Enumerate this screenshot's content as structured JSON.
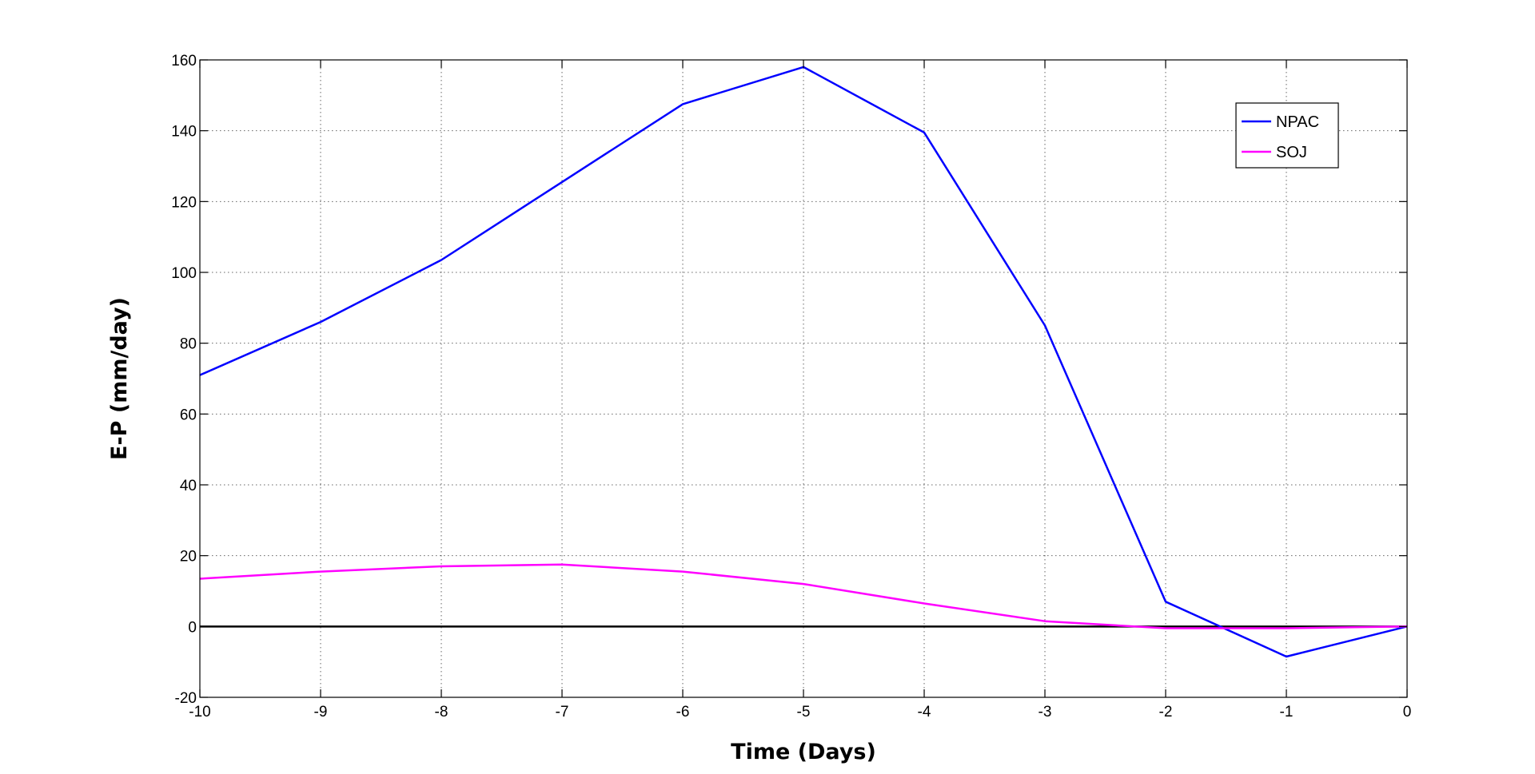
{
  "chart_data": {
    "type": "line",
    "title": "",
    "xlabel": "Time (Days)",
    "ylabel": "E-P (mm/day)",
    "xlim": [
      -10,
      0
    ],
    "ylim": [
      -20,
      160
    ],
    "x_ticks": [
      -10,
      -9,
      -8,
      -7,
      -6,
      -5,
      -4,
      -3,
      -2,
      -1,
      0
    ],
    "y_ticks": [
      -20,
      0,
      20,
      40,
      60,
      80,
      100,
      120,
      140,
      160
    ],
    "grid": true,
    "zero_line": true,
    "legend_position": "top-right",
    "series": [
      {
        "name": "NPAC",
        "color": "#0000ff",
        "x": [
          -10,
          -9,
          -8,
          -7,
          -6,
          -5,
          -4,
          -3,
          -2,
          -1,
          0
        ],
        "values": [
          71,
          86,
          103.5,
          125.5,
          147.5,
          158,
          139.5,
          85,
          7,
          -8.5,
          0
        ]
      },
      {
        "name": "SOJ",
        "color": "#ff00ff",
        "x": [
          -10,
          -9,
          -8,
          -7,
          -6,
          -5,
          -4,
          -3,
          -2,
          -1,
          0
        ],
        "values": [
          13.5,
          15.5,
          17,
          17.5,
          15.5,
          12,
          6.5,
          1.5,
          -0.5,
          -0.5,
          0
        ]
      }
    ]
  }
}
